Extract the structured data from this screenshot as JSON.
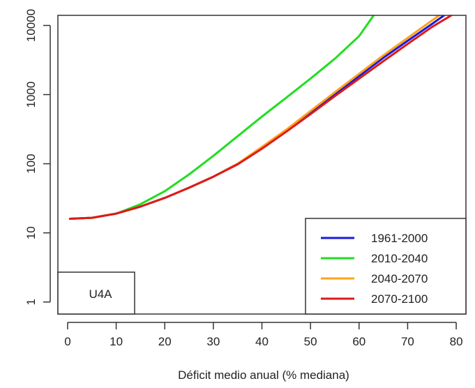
{
  "chart_data": {
    "type": "line",
    "title": "",
    "xlabel": "Déficit medio anual (% mediana)",
    "ylabel": "",
    "xlim": [
      -2,
      82
    ],
    "ylim": [
      0.67,
      14000
    ],
    "yscale": "log",
    "grid": false,
    "x_ticks": [
      0,
      10,
      20,
      30,
      40,
      50,
      60,
      70,
      80
    ],
    "x_tick_labels": [
      "0",
      "10",
      "20",
      "30",
      "40",
      "50",
      "60",
      "70",
      "80"
    ],
    "y_ticks": [
      1,
      10,
      100,
      1000,
      10000
    ],
    "y_tick_labels": [
      "1",
      "10",
      "100",
      "1000",
      "10000"
    ],
    "legend_position": "bottom-right",
    "annotation": "U4A",
    "series": [
      {
        "name": "1961-2000",
        "color": "#1a1adf",
        "x": [
          0.5,
          5,
          10,
          15,
          20,
          25,
          30,
          35,
          40,
          45,
          50,
          55,
          60,
          65,
          70,
          75,
          77.5
        ],
        "y": [
          16,
          16.5,
          19,
          24,
          32,
          45,
          65,
          100,
          170,
          300,
          550,
          1000,
          1850,
          3400,
          6000,
          10500,
          14000
        ]
      },
      {
        "name": "2010-2040",
        "color": "#22dd22",
        "x": [
          0.5,
          5,
          10,
          15,
          20,
          25,
          30,
          35,
          40,
          45,
          50,
          55,
          60,
          63
        ],
        "y": [
          16,
          16.5,
          19,
          26,
          40,
          70,
          130,
          250,
          480,
          900,
          1700,
          3300,
          7000,
          14000
        ]
      },
      {
        "name": "2040-2070",
        "color": "#ffa31a",
        "x": [
          0.5,
          5,
          10,
          15,
          20,
          25,
          30,
          35,
          40,
          45,
          50,
          55,
          60,
          65,
          70,
          75,
          76.5
        ],
        "y": [
          16,
          16.5,
          19,
          24,
          32,
          45,
          65,
          100,
          175,
          310,
          580,
          1080,
          2000,
          3700,
          6600,
          11800,
          14000
        ]
      },
      {
        "name": "2070-2100",
        "color": "#dd1a1a",
        "x": [
          0.5,
          5,
          10,
          15,
          20,
          25,
          30,
          35,
          40,
          45,
          50,
          55,
          60,
          65,
          70,
          75,
          79
        ],
        "y": [
          16,
          16.5,
          19,
          24,
          32,
          45,
          65,
          98,
          165,
          290,
          520,
          950,
          1700,
          3050,
          5400,
          9500,
          14000
        ]
      }
    ]
  }
}
